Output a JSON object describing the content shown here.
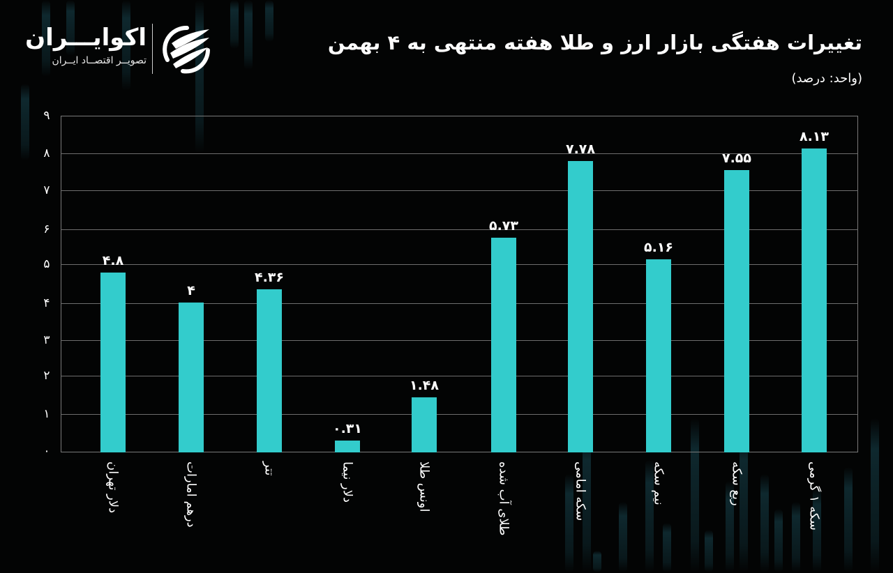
{
  "header": {
    "title": "تغییرات هفتگی بازار ارز و طلا هفته منتهی به ۴ بهمن",
    "subtitle": "(واحد: درصد)"
  },
  "logo": {
    "name": "اکوایـــران",
    "tagline": "تصویــر اقتصــاد ایــران",
    "icon": "ecoiran-swirl-logo-icon"
  },
  "colors": {
    "background": "#030404",
    "bar": "#33cccc",
    "grid": "#6e6e6e",
    "text": "#ffffff"
  },
  "chart_data": {
    "type": "bar",
    "title": "تغییرات هفتگی بازار ارز و طلا هفته منتهی به ۴ بهمن",
    "subtitle": "(واحد: درصد)",
    "xlabel": "",
    "ylabel": "درصد",
    "ylim": [
      0,
      9
    ],
    "yticks": [
      0,
      1,
      2,
      3,
      4,
      5,
      6,
      7,
      8,
      9
    ],
    "ytick_labels": [
      "۰",
      "۱",
      "۲",
      "۳",
      "۴",
      "۵",
      "۶",
      "۷",
      "۸",
      "۹"
    ],
    "grid": true,
    "legend": null,
    "categories": [
      "دلار تهران",
      "درهم امارات",
      "تتر",
      "دلار نیما",
      "اونس طلا",
      "طلای آب شده",
      "سکه امامی",
      "نیم سکه",
      "ربع سکه",
      "سکه ۱ گرمی"
    ],
    "values": [
      4.8,
      4,
      4.36,
      0.31,
      1.48,
      5.73,
      7.78,
      5.16,
      7.55,
      8.13
    ],
    "value_labels": [
      "۴.۸",
      "۴",
      "۴.۳۶",
      "۰.۳۱",
      "۱.۴۸",
      "۵.۷۳",
      "۷.۷۸",
      "۵.۱۶",
      "۷.۵۵",
      "۸.۱۳"
    ]
  }
}
